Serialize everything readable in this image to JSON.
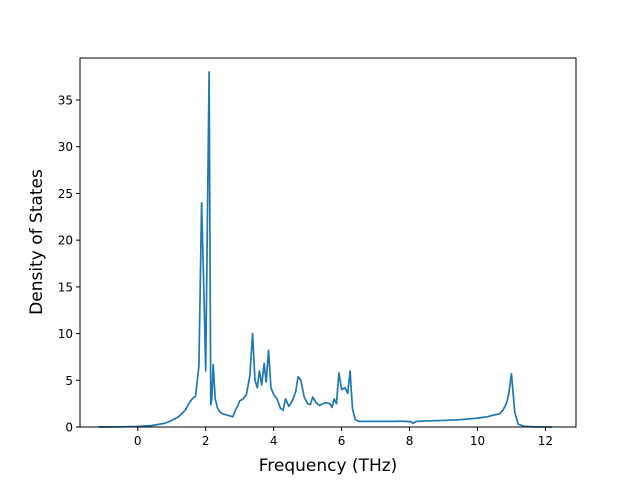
{
  "chart_data": {
    "type": "line",
    "title": "",
    "xlabel": "Frequency (THz)",
    "ylabel": "Density of States",
    "xlim": [
      -1.7,
      12.9
    ],
    "ylim": [
      0,
      39.5
    ],
    "xticks": [
      0,
      2,
      4,
      6,
      8,
      10,
      12
    ],
    "yticks": [
      0,
      5,
      10,
      15,
      20,
      25,
      30,
      35
    ],
    "grid": false,
    "legend": "none",
    "series": [
      {
        "color": "#1f77b4",
        "x": [
          -1.15,
          -0.5,
          0.0,
          0.4,
          0.8,
          1.0,
          1.2,
          1.4,
          1.5,
          1.6,
          1.7,
          1.8,
          1.88,
          1.95,
          2.0,
          2.05,
          2.1,
          2.15,
          2.18,
          2.22,
          2.28,
          2.35,
          2.42,
          2.5,
          2.6,
          2.7,
          2.8,
          2.9,
          2.95,
          3.0,
          3.1,
          3.2,
          3.3,
          3.38,
          3.45,
          3.52,
          3.58,
          3.65,
          3.72,
          3.78,
          3.85,
          3.92,
          4.0,
          4.1,
          4.2,
          4.28,
          4.35,
          4.45,
          4.55,
          4.65,
          4.72,
          4.8,
          4.9,
          5.0,
          5.08,
          5.15,
          5.25,
          5.35,
          5.45,
          5.55,
          5.65,
          5.72,
          5.78,
          5.85,
          5.92,
          6.0,
          6.1,
          6.18,
          6.25,
          6.32,
          6.4,
          6.5,
          7.0,
          7.5,
          7.7,
          7.9,
          8.05,
          8.1,
          8.2,
          8.5,
          8.8,
          9.0,
          9.5,
          10.0,
          10.3,
          10.5,
          10.65,
          10.75,
          10.85,
          10.92,
          11.0,
          11.1,
          11.2,
          11.4,
          11.8,
          12.2
        ],
        "y": [
          0.0,
          0.02,
          0.05,
          0.15,
          0.4,
          0.7,
          1.1,
          1.8,
          2.5,
          3.0,
          3.3,
          6.5,
          24.0,
          14.0,
          6.0,
          22.0,
          38.0,
          2.4,
          3.0,
          6.7,
          3.0,
          2.0,
          1.6,
          1.4,
          1.3,
          1.2,
          1.1,
          2.0,
          2.3,
          2.8,
          3.0,
          3.5,
          5.5,
          10.0,
          5.0,
          4.2,
          6.0,
          4.5,
          6.8,
          4.8,
          8.2,
          4.2,
          3.5,
          3.0,
          2.0,
          1.8,
          3.0,
          2.2,
          2.8,
          3.8,
          5.4,
          5.0,
          3.2,
          2.5,
          2.4,
          3.2,
          2.6,
          2.3,
          2.5,
          2.6,
          2.5,
          2.1,
          3.0,
          2.5,
          5.8,
          4.0,
          4.2,
          3.6,
          6.0,
          2.0,
          0.8,
          0.6,
          0.6,
          0.6,
          0.62,
          0.6,
          0.55,
          0.4,
          0.6,
          0.65,
          0.68,
          0.7,
          0.78,
          0.95,
          1.1,
          1.3,
          1.4,
          1.8,
          2.5,
          3.5,
          5.7,
          1.5,
          0.3,
          0.05,
          0.0,
          0.0
        ]
      }
    ]
  }
}
